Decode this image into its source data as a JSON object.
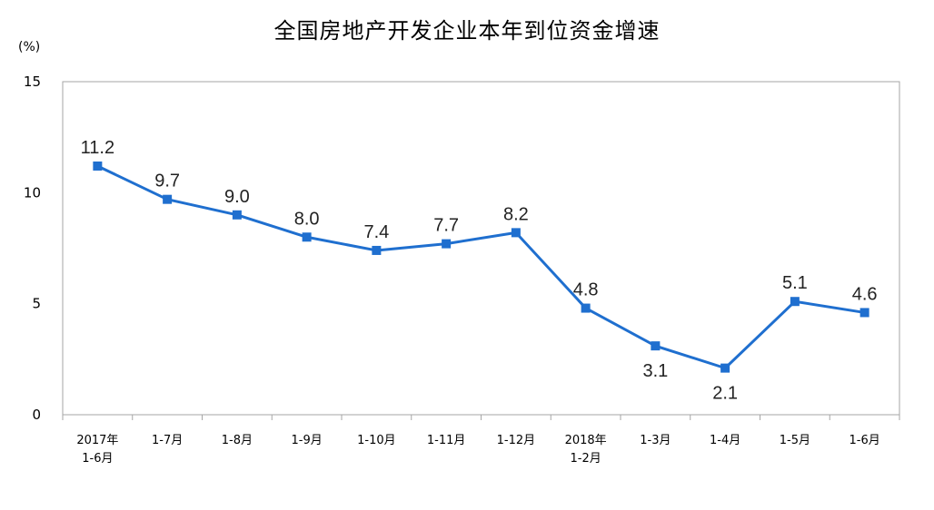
{
  "chart_data": {
    "type": "line",
    "title": "全国房地产开发企业本年到位资金增速",
    "unit_label": "(%)",
    "ylim": [
      0,
      15
    ],
    "yticks": [
      "0",
      "5",
      "10",
      "15"
    ],
    "categories": [
      [
        "2017年",
        "1-6月"
      ],
      [
        "1-7月"
      ],
      [
        "1-8月"
      ],
      [
        "1-9月"
      ],
      [
        "1-10月"
      ],
      [
        "1-11月"
      ],
      [
        "1-12月"
      ],
      [
        "2018年",
        "1-2月"
      ],
      [
        "1-3月"
      ],
      [
        "1-4月"
      ],
      [
        "1-5月"
      ],
      [
        "1-6月"
      ]
    ],
    "series": [
      {
        "values": [
          11.2,
          9.7,
          9.0,
          8.0,
          7.4,
          7.7,
          8.2,
          4.8,
          3.1,
          2.1,
          5.1,
          4.6
        ]
      }
    ],
    "data_labels": [
      "11.2",
      "9.7",
      "9.0",
      "8.0",
      "7.4",
      "7.7",
      "8.2",
      "4.8",
      "3.1",
      "2.1",
      "5.1",
      "4.6"
    ],
    "line_color": "#1f6fcf",
    "grid": false,
    "legend": "none"
  }
}
